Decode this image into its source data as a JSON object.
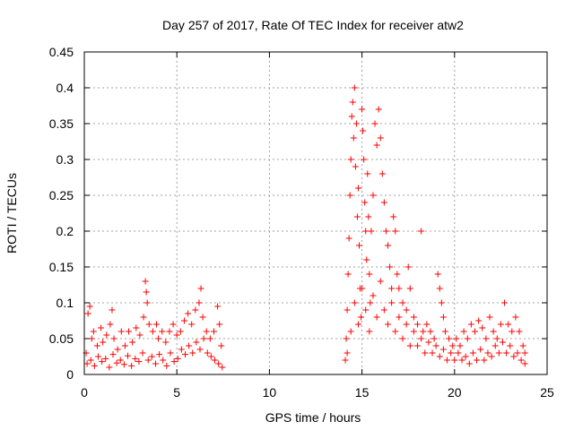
{
  "chart_data": {
    "type": "scatter",
    "title": "Day 257 of 2017, Rate Of TEC Index for receiver atw2",
    "xlabel": "GPS time / hours",
    "ylabel": "ROTI / TECUs",
    "xlim": [
      0,
      25
    ],
    "ylim": [
      0,
      0.45
    ],
    "xticks": [
      "0",
      "5",
      "10",
      "15",
      "20",
      "25"
    ],
    "yticks": [
      "0",
      "0.05",
      "0.1",
      "0.15",
      "0.2",
      "0.25",
      "0.3",
      "0.35",
      "0.4",
      "0.45"
    ],
    "grid": true,
    "marker": "+",
    "color": "#ff0000",
    "series": [
      {
        "name": "ROTI",
        "points": [
          [
            0.1,
            0.03
          ],
          [
            0.2,
            0.085
          ],
          [
            0.3,
            0.095
          ],
          [
            0.4,
            0.05
          ],
          [
            0.5,
            0.06
          ],
          [
            0.7,
            0.04
          ],
          [
            0.9,
            0.065
          ],
          [
            1.0,
            0.045
          ],
          [
            1.2,
            0.055
          ],
          [
            1.4,
            0.07
          ],
          [
            1.5,
            0.09
          ],
          [
            1.6,
            0.05
          ],
          [
            1.8,
            0.035
          ],
          [
            2.0,
            0.06
          ],
          [
            2.2,
            0.04
          ],
          [
            2.4,
            0.06
          ],
          [
            2.6,
            0.045
          ],
          [
            2.8,
            0.065
          ],
          [
            3.0,
            0.055
          ],
          [
            3.2,
            0.08
          ],
          [
            3.3,
            0.13
          ],
          [
            3.35,
            0.115
          ],
          [
            3.4,
            0.1
          ],
          [
            3.5,
            0.07
          ],
          [
            3.7,
            0.06
          ],
          [
            3.9,
            0.07
          ],
          [
            4.0,
            0.05
          ],
          [
            4.2,
            0.06
          ],
          [
            4.4,
            0.045
          ],
          [
            4.6,
            0.06
          ],
          [
            4.8,
            0.07
          ],
          [
            5.0,
            0.055
          ],
          [
            5.2,
            0.06
          ],
          [
            5.4,
            0.075
          ],
          [
            5.6,
            0.085
          ],
          [
            5.8,
            0.07
          ],
          [
            6.0,
            0.09
          ],
          [
            6.2,
            0.1
          ],
          [
            6.3,
            0.12
          ],
          [
            6.4,
            0.08
          ],
          [
            6.6,
            0.06
          ],
          [
            6.8,
            0.05
          ],
          [
            7.0,
            0.06
          ],
          [
            7.2,
            0.095
          ],
          [
            7.3,
            0.07
          ],
          [
            7.4,
            0.04
          ],
          [
            0.15,
            0.015
          ],
          [
            0.35,
            0.02
          ],
          [
            0.55,
            0.012
          ],
          [
            0.75,
            0.025
          ],
          [
            0.95,
            0.018
          ],
          [
            1.15,
            0.022
          ],
          [
            1.35,
            0.01
          ],
          [
            1.55,
            0.028
          ],
          [
            1.75,
            0.016
          ],
          [
            1.95,
            0.02
          ],
          [
            2.15,
            0.014
          ],
          [
            2.35,
            0.026
          ],
          [
            2.55,
            0.012
          ],
          [
            2.75,
            0.022
          ],
          [
            2.95,
            0.018
          ],
          [
            3.15,
            0.03
          ],
          [
            3.45,
            0.02
          ],
          [
            3.65,
            0.025
          ],
          [
            3.85,
            0.015
          ],
          [
            4.05,
            0.028
          ],
          [
            4.25,
            0.02
          ],
          [
            4.45,
            0.012
          ],
          [
            4.65,
            0.03
          ],
          [
            4.85,
            0.018
          ],
          [
            5.05,
            0.022
          ],
          [
            5.25,
            0.035
          ],
          [
            5.45,
            0.028
          ],
          [
            5.65,
            0.04
          ],
          [
            5.85,
            0.03
          ],
          [
            6.05,
            0.045
          ],
          [
            6.25,
            0.035
          ],
          [
            6.45,
            0.05
          ],
          [
            6.65,
            0.03
          ],
          [
            6.85,
            0.025
          ],
          [
            7.05,
            0.02
          ],
          [
            7.25,
            0.015
          ],
          [
            7.45,
            0.01
          ],
          [
            14.1,
            0.02
          ],
          [
            14.15,
            0.05
          ],
          [
            14.2,
            0.09
          ],
          [
            14.25,
            0.14
          ],
          [
            14.3,
            0.19
          ],
          [
            14.35,
            0.25
          ],
          [
            14.4,
            0.3
          ],
          [
            14.45,
            0.36
          ],
          [
            14.5,
            0.38
          ],
          [
            14.55,
            0.33
          ],
          [
            14.6,
            0.4
          ],
          [
            14.65,
            0.29
          ],
          [
            14.7,
            0.35
          ],
          [
            14.75,
            0.22
          ],
          [
            14.8,
            0.26
          ],
          [
            14.85,
            0.18
          ],
          [
            14.9,
            0.12
          ],
          [
            14.95,
            0.08
          ],
          [
            15.0,
            0.37
          ],
          [
            15.05,
            0.34
          ],
          [
            15.1,
            0.3
          ],
          [
            15.15,
            0.24
          ],
          [
            15.2,
            0.2
          ],
          [
            15.25,
            0.16
          ],
          [
            15.3,
            0.28
          ],
          [
            15.35,
            0.22
          ],
          [
            15.4,
            0.14
          ],
          [
            15.45,
            0.1
          ],
          [
            15.5,
            0.2
          ],
          [
            15.6,
            0.25
          ],
          [
            15.7,
            0.35
          ],
          [
            15.8,
            0.32
          ],
          [
            15.9,
            0.37
          ],
          [
            16.0,
            0.33
          ],
          [
            16.1,
            0.28
          ],
          [
            16.2,
            0.24
          ],
          [
            16.3,
            0.2
          ],
          [
            16.4,
            0.18
          ],
          [
            16.5,
            0.15
          ],
          [
            16.6,
            0.12
          ],
          [
            16.7,
            0.22
          ],
          [
            16.8,
            0.2
          ],
          [
            16.9,
            0.14
          ],
          [
            17.0,
            0.12
          ],
          [
            17.2,
            0.1
          ],
          [
            17.4,
            0.09
          ],
          [
            17.5,
            0.15
          ],
          [
            17.6,
            0.12
          ],
          [
            17.8,
            0.08
          ],
          [
            18.0,
            0.07
          ],
          [
            18.2,
            0.2
          ],
          [
            18.3,
            0.06
          ],
          [
            18.5,
            0.07
          ],
          [
            18.7,
            0.06
          ],
          [
            18.9,
            0.05
          ],
          [
            19.1,
            0.14
          ],
          [
            19.2,
            0.12
          ],
          [
            19.3,
            0.1
          ],
          [
            19.4,
            0.08
          ],
          [
            19.5,
            0.06
          ],
          [
            19.7,
            0.05
          ],
          [
            19.9,
            0.04
          ],
          [
            20.1,
            0.05
          ],
          [
            20.3,
            0.04
          ],
          [
            20.5,
            0.06
          ],
          [
            20.7,
            0.05
          ],
          [
            20.9,
            0.07
          ],
          [
            21.1,
            0.06
          ],
          [
            21.3,
            0.075
          ],
          [
            21.5,
            0.065
          ],
          [
            21.7,
            0.05
          ],
          [
            21.9,
            0.08
          ],
          [
            22.1,
            0.06
          ],
          [
            22.3,
            0.05
          ],
          [
            22.5,
            0.07
          ],
          [
            22.7,
            0.1
          ],
          [
            22.9,
            0.07
          ],
          [
            23.1,
            0.06
          ],
          [
            23.3,
            0.08
          ],
          [
            23.5,
            0.06
          ],
          [
            23.7,
            0.04
          ],
          [
            23.8,
            0.03
          ],
          [
            14.2,
            0.03
          ],
          [
            14.4,
            0.06
          ],
          [
            14.6,
            0.1
          ],
          [
            14.8,
            0.07
          ],
          [
            15.0,
            0.12
          ],
          [
            15.2,
            0.09
          ],
          [
            15.4,
            0.06
          ],
          [
            15.6,
            0.11
          ],
          [
            15.8,
            0.08
          ],
          [
            16.0,
            0.13
          ],
          [
            16.2,
            0.09
          ],
          [
            16.4,
            0.07
          ],
          [
            16.6,
            0.1
          ],
          [
            16.8,
            0.06
          ],
          [
            17.0,
            0.08
          ],
          [
            17.2,
            0.05
          ],
          [
            17.4,
            0.07
          ],
          [
            17.6,
            0.04
          ],
          [
            17.8,
            0.06
          ],
          [
            18.0,
            0.04
          ],
          [
            18.2,
            0.05
          ],
          [
            18.4,
            0.03
          ],
          [
            18.6,
            0.045
          ],
          [
            18.8,
            0.03
          ],
          [
            19.0,
            0.04
          ],
          [
            19.2,
            0.025
          ],
          [
            19.4,
            0.035
          ],
          [
            19.6,
            0.02
          ],
          [
            19.8,
            0.03
          ],
          [
            20.0,
            0.02
          ],
          [
            20.2,
            0.03
          ],
          [
            20.4,
            0.02
          ],
          [
            20.6,
            0.025
          ],
          [
            20.8,
            0.015
          ],
          [
            21.0,
            0.03
          ],
          [
            21.2,
            0.02
          ],
          [
            21.4,
            0.035
          ],
          [
            21.6,
            0.02
          ],
          [
            21.8,
            0.03
          ],
          [
            22.0,
            0.025
          ],
          [
            22.2,
            0.04
          ],
          [
            22.4,
            0.03
          ],
          [
            22.6,
            0.045
          ],
          [
            22.8,
            0.03
          ],
          [
            23.0,
            0.04
          ],
          [
            23.2,
            0.025
          ],
          [
            23.4,
            0.03
          ],
          [
            23.6,
            0.02
          ],
          [
            23.8,
            0.015
          ]
        ]
      }
    ]
  }
}
